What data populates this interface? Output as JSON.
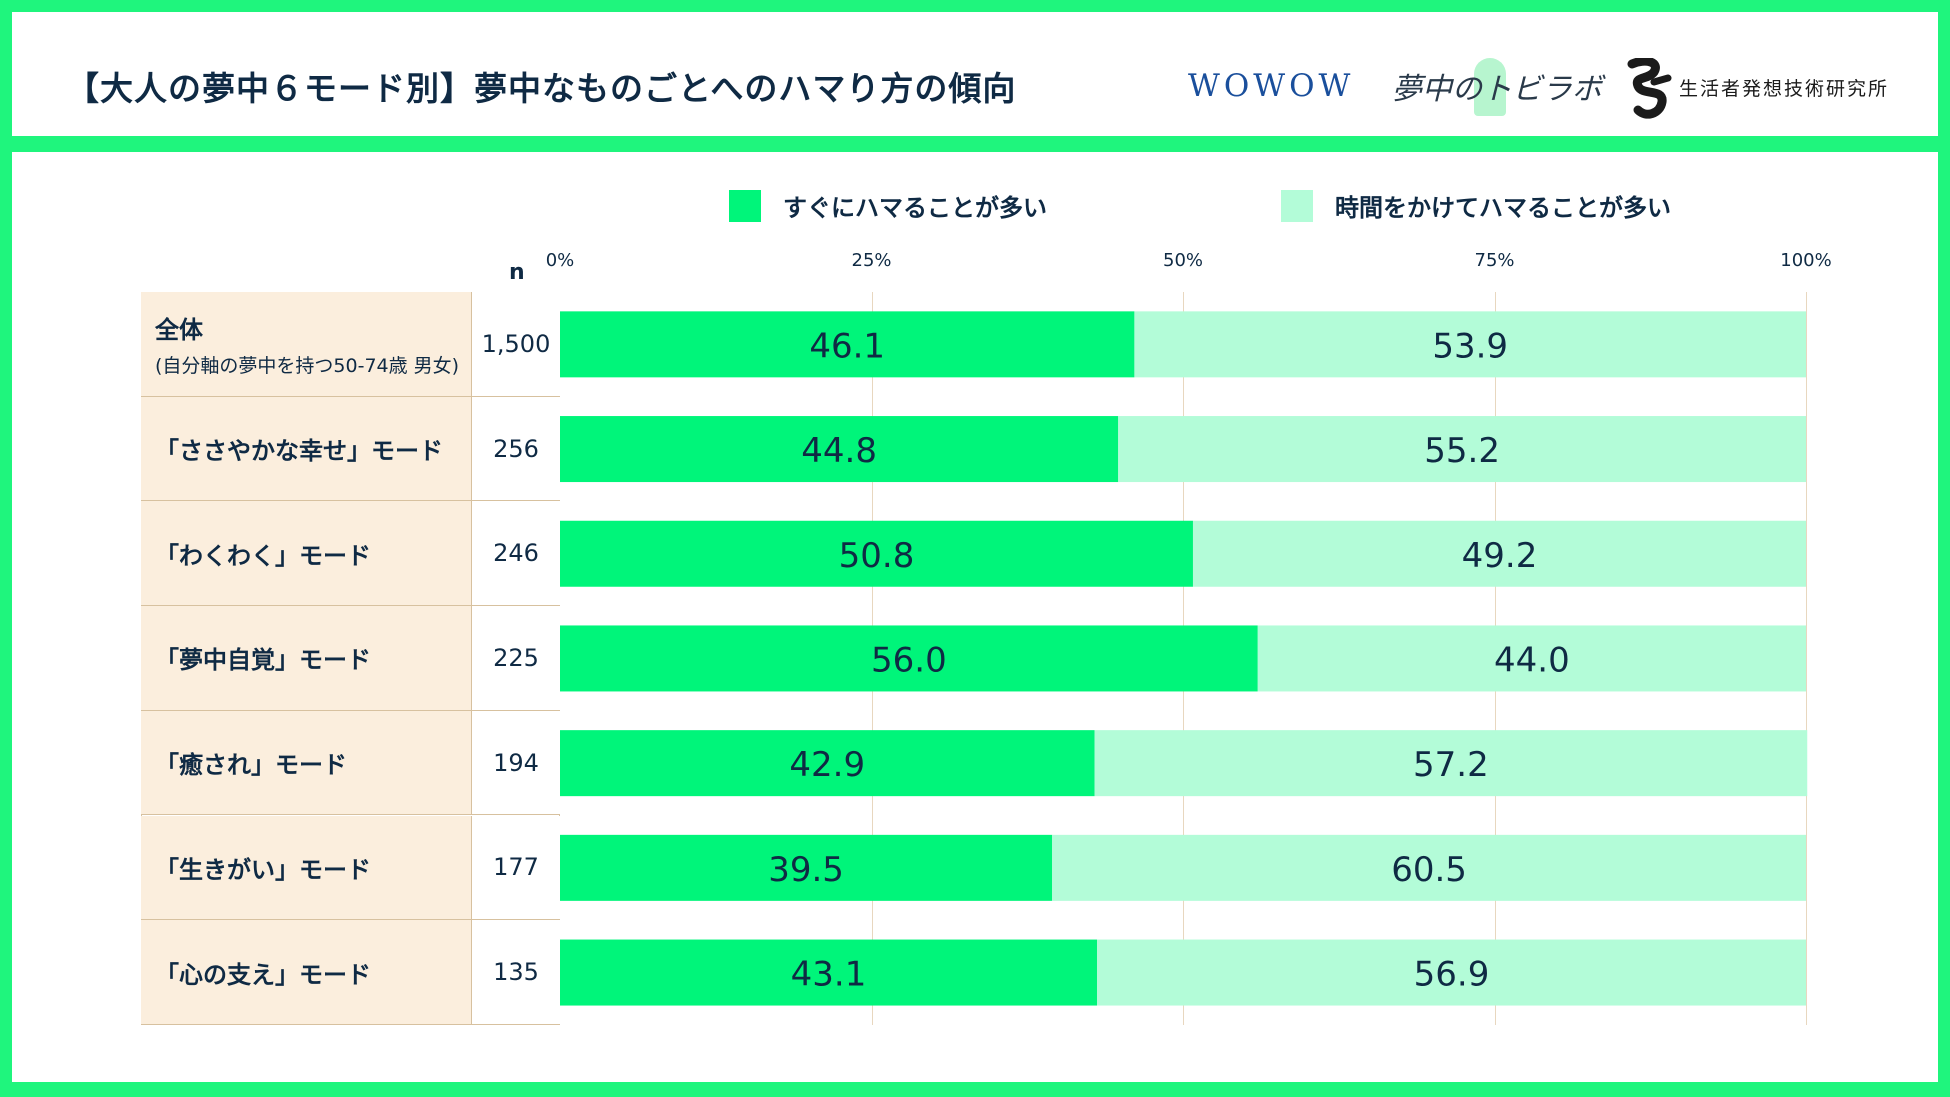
{
  "header": {
    "title": "【大人の夢中６モード別】夢中なものごとへのハマり方の傾向",
    "logos": {
      "wowow": "WOWOW",
      "lab": "夢中のトビラボ",
      "hakuhodo_text": "生活者発想技術研究所"
    }
  },
  "colors": {
    "frame": "#1ff57d",
    "quick": "#00f57a",
    "slow": "#b3fcd8",
    "label_bg": "#fbeedd",
    "text": "#0f2a44",
    "grid": "#e8d7bf"
  },
  "legend": [
    {
      "label": "すぐにハマることが多い",
      "color": "#00f57a"
    },
    {
      "label": "時間をかけてハマることが多い",
      "color": "#b3fcd8"
    }
  ],
  "table": {
    "n_header": "n"
  },
  "chart_data": {
    "type": "bar",
    "orientation": "horizontal",
    "stacked": true,
    "xlim": [
      0,
      100
    ],
    "xticks": [
      "0%",
      "25%",
      "50%",
      "75%",
      "100%"
    ],
    "xtick_values": [
      0,
      25,
      50,
      75,
      100
    ],
    "grid": true,
    "legend_position": "top",
    "categories": [
      {
        "label": "全体",
        "sublabel": "(自分軸の夢中を持つ50-74歳 男女)",
        "n": "1,500"
      },
      {
        "label": "「ささやかな幸せ」モード",
        "sublabel": "",
        "n": "256"
      },
      {
        "label": "「わくわく」モード",
        "sublabel": "",
        "n": "246"
      },
      {
        "label": "「夢中自覚」モード",
        "sublabel": "",
        "n": "225"
      },
      {
        "label": "「癒され」モード",
        "sublabel": "",
        "n": "194"
      },
      {
        "label": "「生きがい」モード",
        "sublabel": "",
        "n": "177"
      },
      {
        "label": "「心の支え」モード",
        "sublabel": "",
        "n": "135"
      }
    ],
    "series": [
      {
        "name": "すぐにハマることが多い",
        "values": [
          "46.1",
          "44.8",
          "50.8",
          "56.0",
          "42.9",
          "39.5",
          "43.1"
        ]
      },
      {
        "name": "時間をかけてハマることが多い",
        "values": [
          "53.9",
          "55.2",
          "49.2",
          "44.0",
          "57.2",
          "60.5",
          "56.9"
        ]
      }
    ]
  }
}
